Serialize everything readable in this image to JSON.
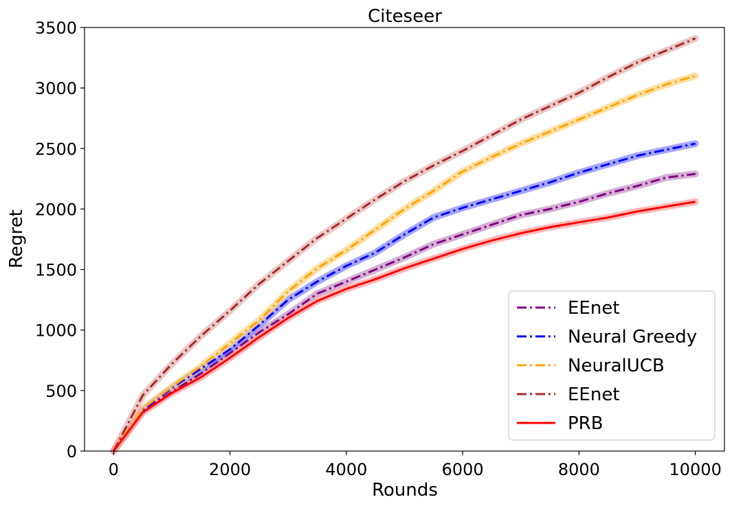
{
  "chart_data": {
    "type": "line",
    "title": "Citeseer",
    "xlabel": "Rounds",
    "ylabel": "Regret",
    "xlim": [
      -500,
      10500
    ],
    "ylim": [
      0,
      3500
    ],
    "xticks": [
      0,
      2000,
      4000,
      6000,
      8000,
      10000
    ],
    "yticks": [
      0,
      500,
      1000,
      1500,
      2000,
      2500,
      3000,
      3500
    ],
    "grid": false,
    "legend_position": "lower-right",
    "x": [
      0,
      500,
      1000,
      1500,
      2000,
      2500,
      3000,
      3500,
      4000,
      4500,
      5000,
      5500,
      6000,
      6500,
      7000,
      7500,
      8000,
      8500,
      9000,
      9500,
      10000
    ],
    "series": [
      {
        "name": "EEnet",
        "color": "#800080",
        "style": "dashdot",
        "band_color": "#c090c0",
        "values": [
          0,
          330,
          490,
          640,
          810,
          980,
          1130,
          1300,
          1400,
          1500,
          1600,
          1710,
          1790,
          1870,
          1950,
          2000,
          2060,
          2130,
          2190,
          2260,
          2290
        ]
      },
      {
        "name": "Neural Greedy",
        "color": "#0000ff",
        "style": "dashdot",
        "band_color": "#8080ff",
        "values": [
          0,
          340,
          520,
          680,
          840,
          1040,
          1250,
          1400,
          1530,
          1640,
          1790,
          1930,
          2010,
          2080,
          2150,
          2220,
          2300,
          2370,
          2440,
          2490,
          2540
        ]
      },
      {
        "name": "NeuralUCB",
        "color": "#ffa500",
        "style": "dashdot",
        "band_color": "#ffd280",
        "values": [
          0,
          350,
          530,
          700,
          890,
          1080,
          1320,
          1510,
          1660,
          1830,
          2000,
          2150,
          2310,
          2430,
          2540,
          2640,
          2740,
          2840,
          2940,
          3030,
          3100
        ]
      },
      {
        "name": "EEnet",
        "color": "#a52a2a",
        "style": "dashdot",
        "band_color": "#e2b0b0",
        "values": [
          0,
          460,
          720,
          950,
          1160,
          1380,
          1570,
          1760,
          1920,
          2080,
          2230,
          2360,
          2480,
          2610,
          2740,
          2850,
          2960,
          3090,
          3210,
          3310,
          3410
        ]
      },
      {
        "name": "PRB",
        "color": "#ff0000",
        "style": "solid",
        "band_color": "#ff9c9c",
        "values": [
          0,
          320,
          480,
          610,
          770,
          940,
          1100,
          1240,
          1340,
          1420,
          1510,
          1590,
          1670,
          1740,
          1800,
          1850,
          1890,
          1930,
          1980,
          2020,
          2060
        ]
      }
    ]
  }
}
